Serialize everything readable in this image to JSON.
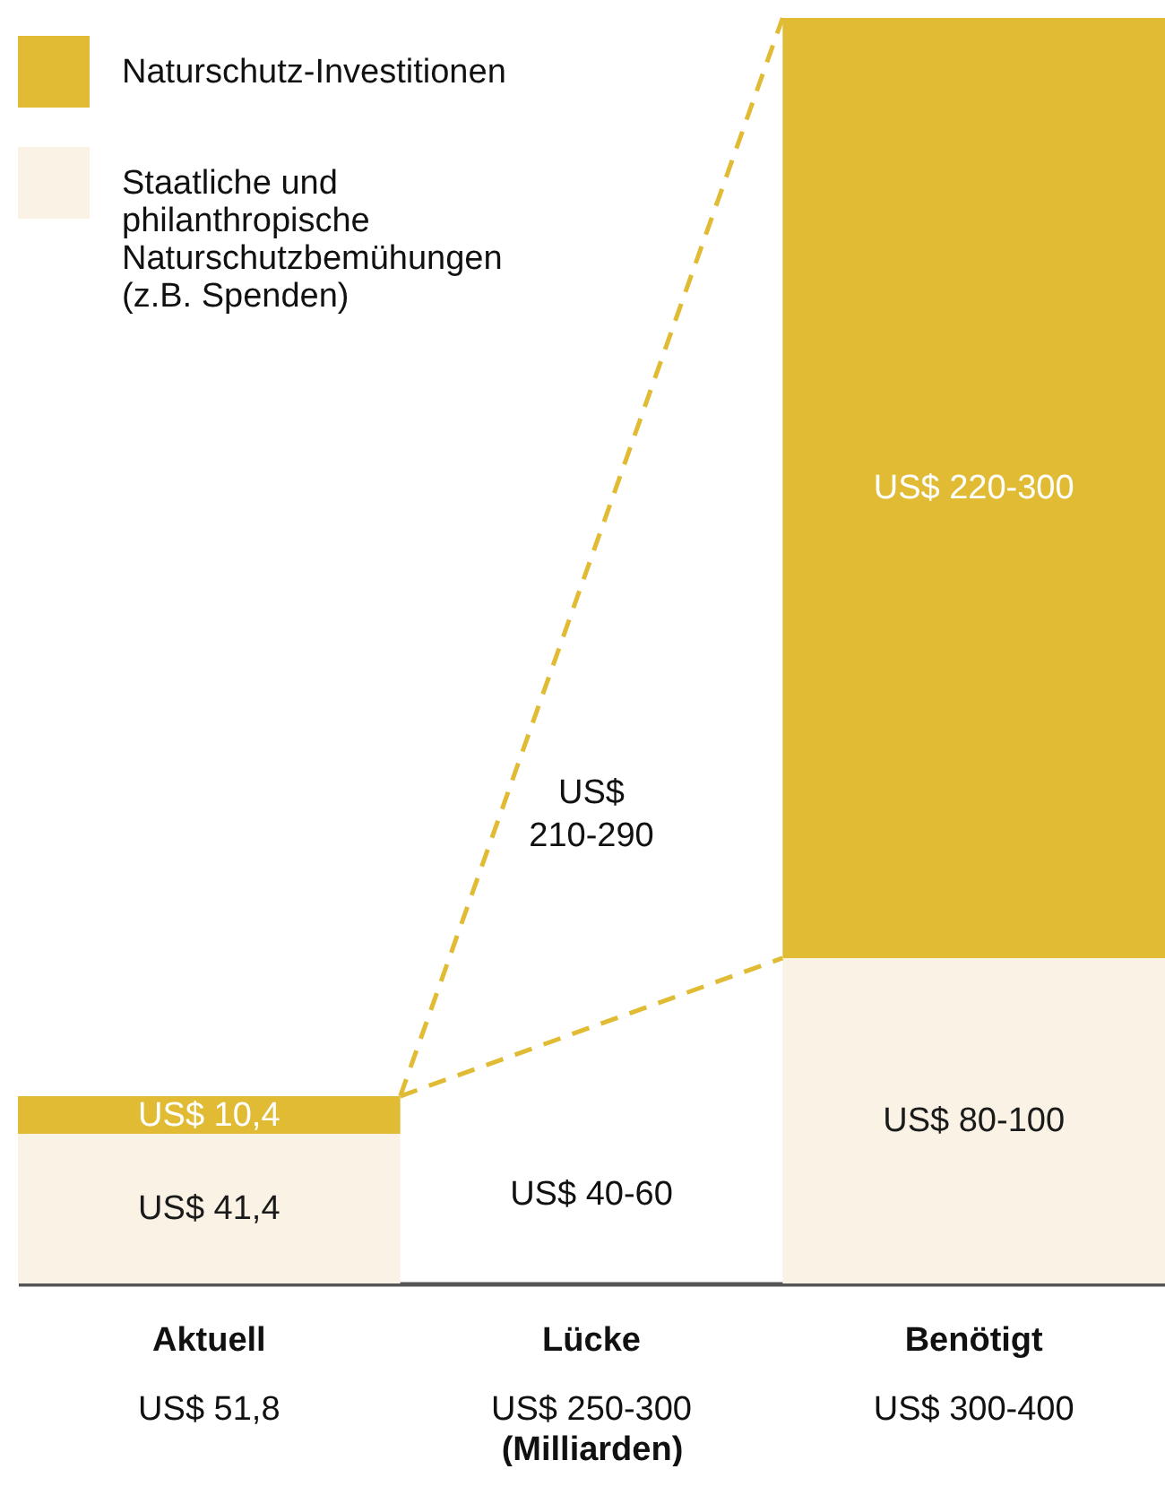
{
  "chart_data": {
    "type": "bar",
    "stacked": true,
    "categories": [
      "Aktuell",
      "Lücke",
      "Benötigt"
    ],
    "xlabel": "(Milliarden)",
    "totals": [
      "US$ 51,8",
      "US$ 250-300",
      "US$ 300-400"
    ],
    "series": [
      {
        "name": "Staatliche und philanthropische Naturschutzbemühungen (z.B. Spenden)",
        "color": "#f9f2e5",
        "values": [
          41.4,
          null,
          90
        ],
        "value_labels": [
          "US$ 41,4",
          null,
          "US$ 80-100"
        ]
      },
      {
        "name": "Naturschutz-Investitionen",
        "color": "#e0bb33",
        "values": [
          10.4,
          null,
          260
        ],
        "value_labels": [
          "US$ 10,4",
          null,
          "US$ 220-300"
        ]
      }
    ],
    "annotations": [
      "US$ 40-60",
      "US$ 210-290"
    ],
    "legend": "top left"
  }
}
